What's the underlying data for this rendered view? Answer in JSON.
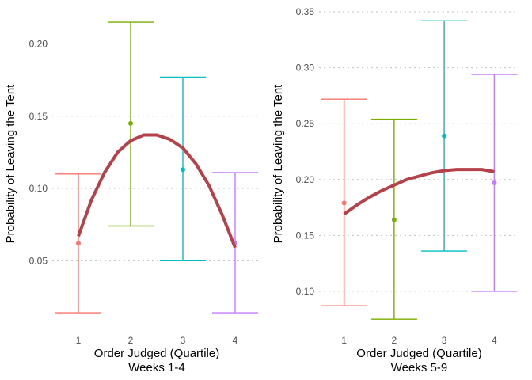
{
  "chart_data": [
    {
      "type": "errorbar-with-fit",
      "xlabel": "Order Judged (Quartile)",
      "subtitle": "Weeks 1-4",
      "ylabel": "Probability of Leaving the Tent",
      "xlim": [
        0.5,
        4.5
      ],
      "ylim": [
        0.008,
        0.226
      ],
      "xticks": [
        "1",
        "2",
        "3",
        "4"
      ],
      "yticks": [
        "0.05",
        "0.10",
        "0.15",
        "0.20"
      ],
      "grid": "horizontal dotted",
      "points": [
        {
          "x": 1,
          "y": 0.062,
          "lower": 0.014,
          "upper": 0.11,
          "color": "#F8766D"
        },
        {
          "x": 2,
          "y": 0.145,
          "lower": 0.074,
          "upper": 0.215,
          "color": "#7CAE00"
        },
        {
          "x": 3,
          "y": 0.113,
          "lower": 0.05,
          "upper": 0.177,
          "color": "#00BFC4"
        },
        {
          "x": 4,
          "y": 0.062,
          "lower": 0.014,
          "upper": 0.111,
          "color": "#C77CFF"
        }
      ],
      "fit": {
        "color": "#B5424A",
        "x": [
          1,
          1.25,
          1.5,
          1.75,
          2,
          2.25,
          2.5,
          2.75,
          3,
          3.25,
          3.5,
          3.75,
          4
        ],
        "y": [
          0.067,
          0.092,
          0.111,
          0.125,
          0.133,
          0.137,
          0.137,
          0.134,
          0.128,
          0.117,
          0.102,
          0.082,
          0.059
        ]
      }
    },
    {
      "type": "errorbar-with-fit",
      "xlabel": "Order Judged (Quartile)",
      "subtitle": "Weeks 5-9",
      "ylabel": "Probability of Leaving the Tent",
      "xlim": [
        0.5,
        4.5
      ],
      "ylim": [
        0.073,
        0.355
      ],
      "xticks": [
        "1",
        "2",
        "3",
        "4"
      ],
      "yticks": [
        "0.10",
        "0.15",
        "0.20",
        "0.25",
        "0.30",
        "0.35"
      ],
      "grid": "horizontal dotted",
      "points": [
        {
          "x": 1,
          "y": 0.179,
          "lower": 0.087,
          "upper": 0.272,
          "color": "#F8766D"
        },
        {
          "x": 2,
          "y": 0.164,
          "lower": 0.075,
          "upper": 0.254,
          "color": "#7CAE00"
        },
        {
          "x": 3,
          "y": 0.239,
          "lower": 0.136,
          "upper": 0.342,
          "color": "#00BFC4"
        },
        {
          "x": 4,
          "y": 0.197,
          "lower": 0.1,
          "upper": 0.294,
          "color": "#C77CFF"
        }
      ],
      "fit": {
        "color": "#B5424A",
        "x": [
          1,
          1.25,
          1.5,
          1.75,
          2,
          2.25,
          2.5,
          2.75,
          3,
          3.25,
          3.5,
          3.75,
          4
        ],
        "y": [
          0.169,
          0.177,
          0.184,
          0.19,
          0.195,
          0.2,
          0.203,
          0.206,
          0.208,
          0.209,
          0.209,
          0.209,
          0.207
        ]
      }
    }
  ]
}
